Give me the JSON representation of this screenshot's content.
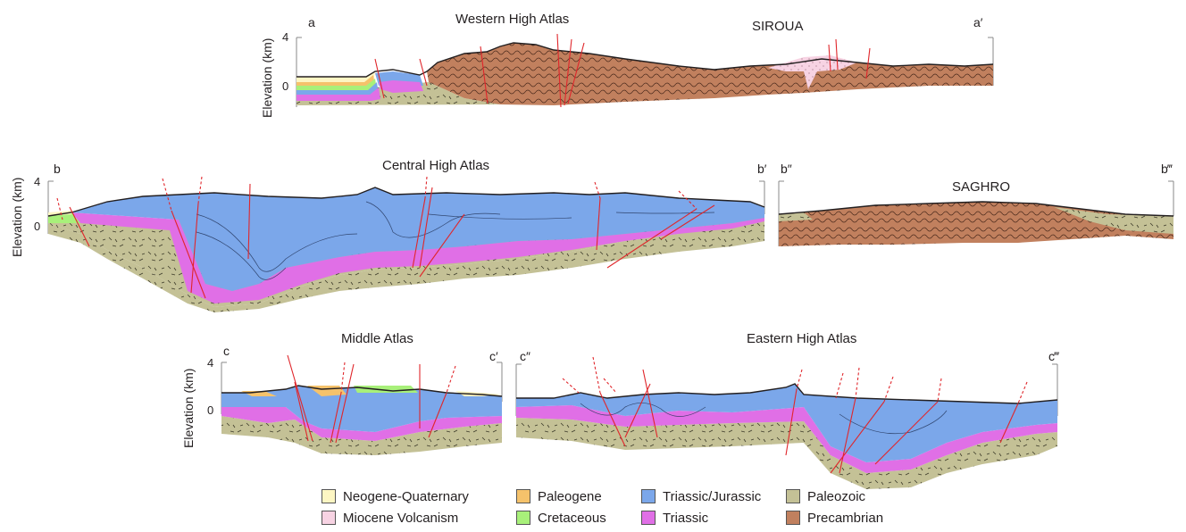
{
  "sections": {
    "a": {
      "title": "Western High Atlas",
      "start": "a",
      "end": "a′",
      "massif": "SIROUA"
    },
    "b": {
      "title": "Central High Atlas",
      "start": "b",
      "end": "b′",
      "start2": "b″",
      "end2": "b‴",
      "massif": "SAGHRO"
    },
    "c": {
      "title": "Middle Atlas",
      "start": "c",
      "end": "c′",
      "title2": "Eastern High Atlas",
      "start2": "c″",
      "end2": "c‴"
    }
  },
  "axis": {
    "label": "Elevation (km)",
    "tick_top": "4",
    "tick_zero": "0"
  },
  "legend": [
    {
      "label": "Neogene-Quaternary",
      "color": "#fdf6c3"
    },
    {
      "label": "Miocene Volcanism",
      "color": "#f7d3e3"
    },
    {
      "label": "Paleogene",
      "color": "#f5c26b"
    },
    {
      "label": "Cretaceous",
      "color": "#a8f07a"
    },
    {
      "label": "Triassic/Jurassic",
      "color": "#7ba7ea"
    },
    {
      "label": "Triassic",
      "color": "#e06fe6"
    },
    {
      "label": "Paleozoic",
      "color": "#c4c196"
    },
    {
      "label": "Precambrian",
      "color": "#c1805e"
    }
  ],
  "colors": {
    "neogene": "#fdf6c3",
    "volcanism": "#f7d3e3",
    "paleogene": "#f5c26b",
    "cretaceous": "#a8f07a",
    "jurassic": "#7ba7ea",
    "triassic": "#e06fe6",
    "paleozoic": "#c4c196",
    "precambrian": "#c1805e",
    "fault": "#e0262b"
  }
}
